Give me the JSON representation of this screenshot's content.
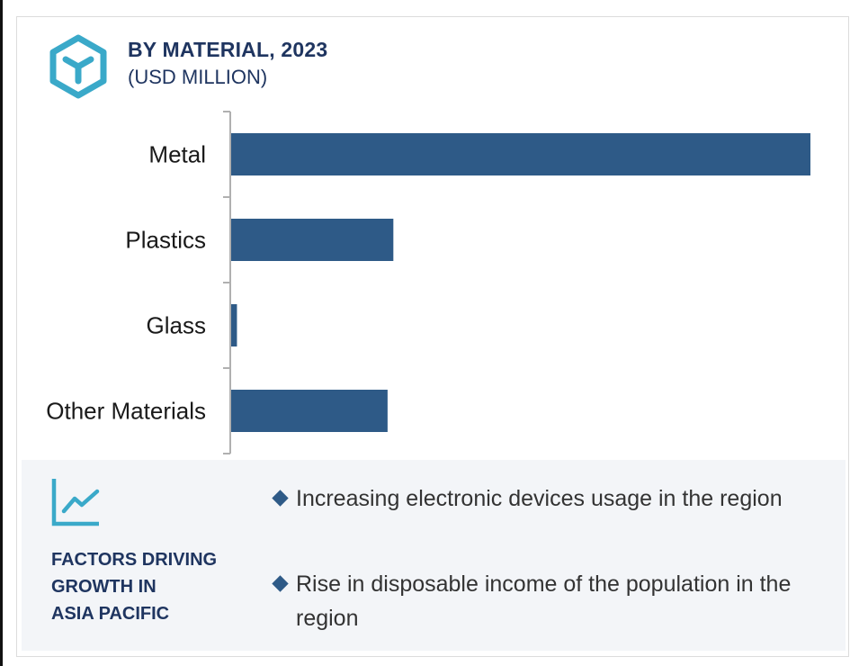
{
  "header": {
    "title": "BY MATERIAL, 2023",
    "subtitle": "(USD MILLION)",
    "icon": "cube-logo-icon"
  },
  "colors": {
    "bar": "#2e5a87",
    "accent": "#3aa9c9",
    "heading": "#1f3560",
    "panel_bg": "#f3f5f8"
  },
  "chart_data": {
    "type": "bar",
    "orientation": "horizontal",
    "categories": [
      "Metal",
      "Plastics",
      "Glass",
      "Other Materials"
    ],
    "values": [
      100,
      28,
      1,
      27
    ],
    "title": "BY MATERIAL, 2023",
    "subtitle": "(USD MILLION)",
    "xlabel": "",
    "ylabel": "",
    "xlim": [
      0,
      100
    ],
    "grid": false,
    "legend": "none"
  },
  "factors": {
    "icon": "trend-line-chart-icon",
    "heading_lines": [
      "FACTORS DRIVING",
      "GROWTH IN",
      "ASIA PACIFIC"
    ],
    "bullets": [
      "Increasing electronic devices usage in the region",
      "Rise in disposable income of the population in the region"
    ]
  }
}
